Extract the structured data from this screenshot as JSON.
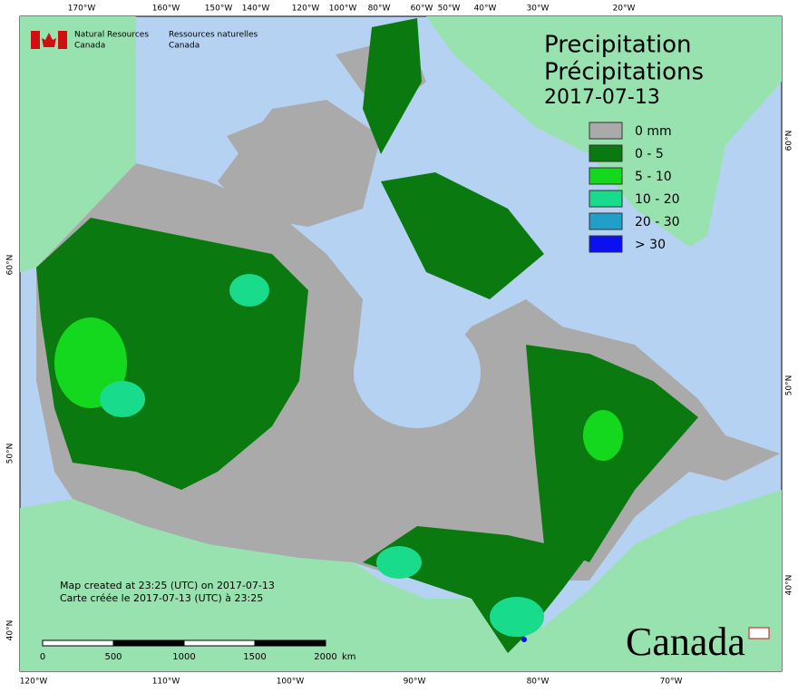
{
  "header": {
    "agency_en_1": "Natural Resources",
    "agency_en_2": "Canada",
    "agency_fr_1": "Ressources naturelles",
    "agency_fr_2": "Canada"
  },
  "title": {
    "en": "Precipitation",
    "fr": "Précipitations",
    "date": "2017-07-13"
  },
  "legend": {
    "items": [
      {
        "label": "0 mm",
        "color": "#aaaaaa"
      },
      {
        "label": "0 - 5",
        "color": "#0a7a10"
      },
      {
        "label": "5 - 10",
        "color": "#14d81e"
      },
      {
        "label": "10 - 20",
        "color": "#18dc8c"
      },
      {
        "label": "20 - 30",
        "color": "#20a0c8"
      },
      {
        "label": "> 30",
        "color": "#0a10f0"
      }
    ]
  },
  "graticule": {
    "top": [
      "170°W",
      "160°W",
      "150°W",
      "140°W",
      "120°W",
      "100°W",
      "80°W",
      "60°W",
      "50°W",
      "40°W",
      "30°W",
      "20°W"
    ],
    "bottom": [
      "120°W",
      "110°W",
      "100°W",
      "90°W",
      "80°W",
      "70°W"
    ],
    "left": [
      "60°N",
      "50°N",
      "40°N"
    ],
    "right": [
      "60°N",
      "50°N",
      "40°N"
    ]
  },
  "credits": {
    "en": "Map created at 23:25 (UTC) on 2017-07-13",
    "fr": "Carte créée le 2017-07-13 (UTC) à 23:25"
  },
  "scale": {
    "labels": [
      "0",
      "500",
      "1000",
      "1500",
      "2000"
    ],
    "unit": "km"
  },
  "wordmark": "Canada"
}
